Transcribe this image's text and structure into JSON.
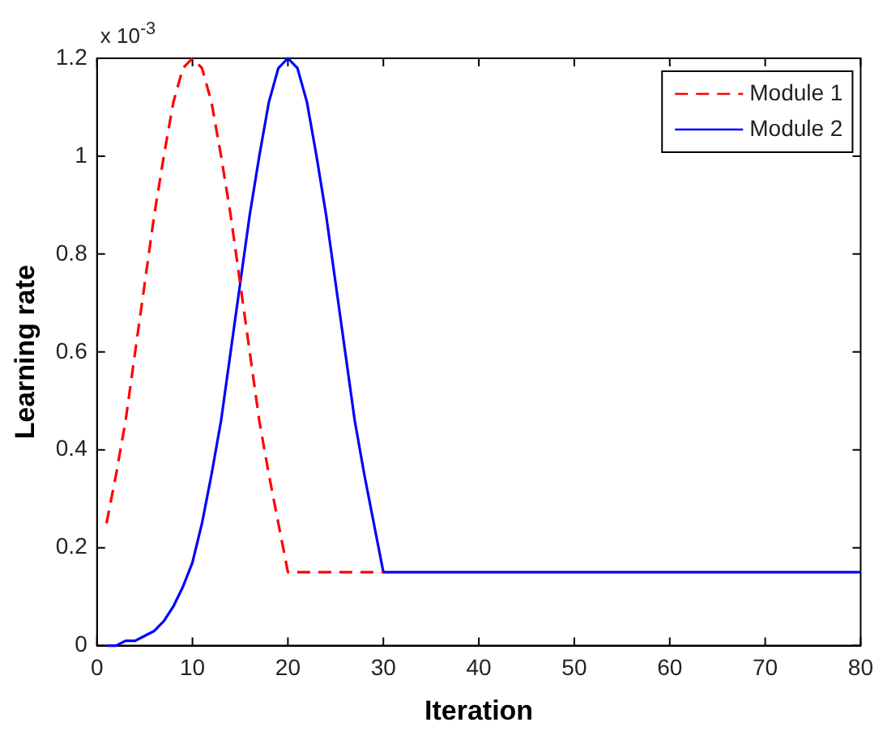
{
  "chart_data": {
    "type": "line",
    "xlabel": "Iteration",
    "ylabel": "Learning rate",
    "annotations": [
      "x 10$^{-3}$"
    ],
    "xlim": [
      0,
      80
    ],
    "xticks": [
      0,
      10,
      20,
      30,
      40,
      50,
      60,
      70,
      80
    ],
    "ylim": [
      0,
      1.2
    ],
    "yticks": [
      0,
      0.2,
      0.4,
      0.6,
      0.8,
      1,
      1.2
    ],
    "legend": "top right",
    "marker": "none",
    "series": [
      {
        "name": "Module 1",
        "color": "#ff0000",
        "line_style": "dashed",
        "x": [
          1,
          2,
          3,
          4,
          5,
          6,
          7,
          8,
          9,
          10,
          11,
          12,
          13,
          14,
          15,
          16,
          17,
          18,
          19,
          20,
          30
        ],
        "values": [
          0.25,
          0.35,
          0.46,
          0.6,
          0.74,
          0.88,
          1,
          1.11,
          1.18,
          1.2,
          1.18,
          1.11,
          1,
          0.88,
          0.74,
          0.6,
          0.46,
          0.35,
          0.25,
          0.15,
          0.15
        ]
      },
      {
        "name": "Module 2",
        "color": "#0000ff",
        "line_style": "solid",
        "x": [
          1,
          2,
          3,
          4,
          5,
          6,
          7,
          8,
          9,
          10,
          11,
          12,
          13,
          14,
          15,
          16,
          17,
          18,
          19,
          20,
          21,
          22,
          23,
          24,
          25,
          26,
          27,
          28,
          29,
          30,
          80
        ],
        "values": [
          0,
          0,
          0.01,
          0.01,
          0.02,
          0.03,
          0.05,
          0.08,
          0.12,
          0.17,
          0.25,
          0.35,
          0.46,
          0.6,
          0.74,
          0.88,
          1,
          1.11,
          1.18,
          1.2,
          1.18,
          1.11,
          1,
          0.88,
          0.74,
          0.6,
          0.46,
          0.35,
          0.25,
          0.15,
          0.15
        ]
      }
    ]
  }
}
